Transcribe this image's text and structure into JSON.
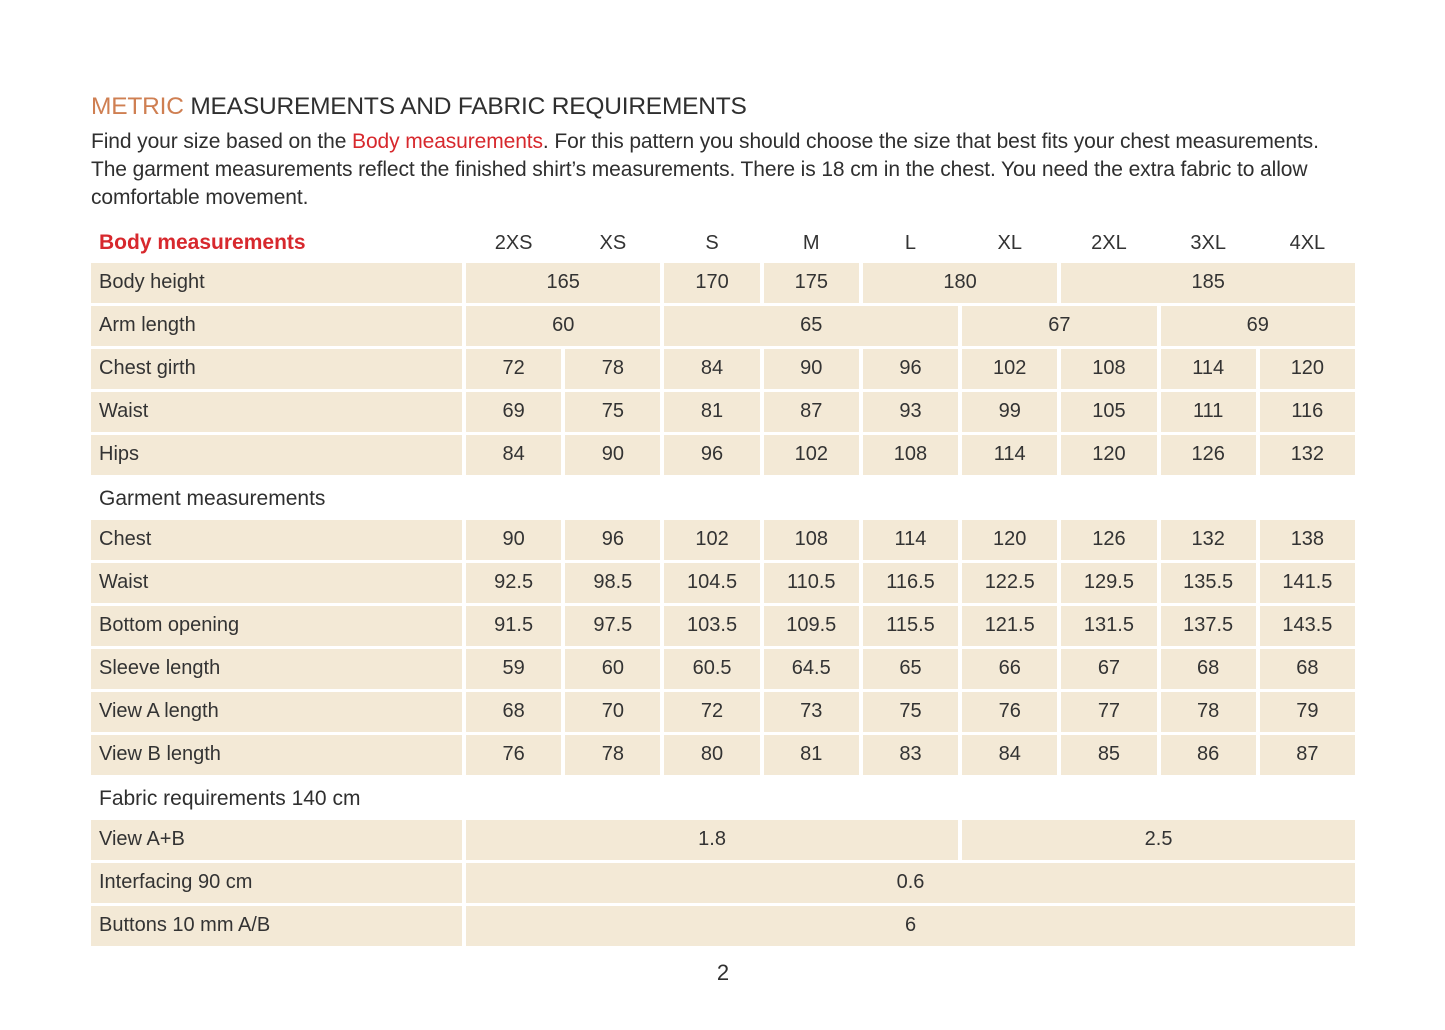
{
  "colors": {
    "accent_orange": "#cf7f52",
    "accent_red": "#d7282d",
    "cell_bg": "#f3e9d6"
  },
  "page": {
    "title_highlight": "METRIC",
    "title_rest": " MEASUREMENTS AND FABRIC REQUIREMENTS",
    "intro_before": "Find your size based on the ",
    "intro_link": "Body measurements",
    "intro_after": ". For this pattern you should choose the size that best fits your chest measurements. The garment measurements reflect the finished shirt’s measurements. There is 18 cm in the chest. You need the extra fabric to allow comfortable movement.",
    "page_number": "2"
  },
  "table": {
    "header": {
      "label": "Body measurements",
      "sizes": [
        "2XS",
        "XS",
        "S",
        "M",
        "L",
        "XL",
        "2XL",
        "3XL",
        "4XL"
      ]
    },
    "groups": [
      {
        "rows": [
          {
            "label": "Body height",
            "cells": [
              {
                "span": 2,
                "value": "165"
              },
              {
                "span": 1,
                "value": "170"
              },
              {
                "span": 1,
                "value": "175"
              },
              {
                "span": 2,
                "value": "180"
              },
              {
                "span": 3,
                "value": "185"
              }
            ]
          },
          {
            "label": "Arm length",
            "cells": [
              {
                "span": 2,
                "value": "60"
              },
              {
                "span": 3,
                "value": "65"
              },
              {
                "span": 2,
                "value": "67"
              },
              {
                "span": 2,
                "value": "69"
              }
            ]
          },
          {
            "label": "Chest girth",
            "values": [
              "72",
              "78",
              "84",
              "90",
              "96",
              "102",
              "108",
              "114",
              "120"
            ]
          },
          {
            "label": "Waist",
            "values": [
              "69",
              "75",
              "81",
              "87",
              "93",
              "99",
              "105",
              "111",
              "116"
            ]
          },
          {
            "label": "Hips",
            "values": [
              "84",
              "90",
              "96",
              "102",
              "108",
              "114",
              "120",
              "126",
              "132"
            ]
          }
        ]
      },
      {
        "section": "Garment measurements",
        "rows": [
          {
            "label": "Chest",
            "values": [
              "90",
              "96",
              "102",
              "108",
              "114",
              "120",
              "126",
              "132",
              "138"
            ]
          },
          {
            "label": "Waist",
            "values": [
              "92.5",
              "98.5",
              "104.5",
              "110.5",
              "116.5",
              "122.5",
              "129.5",
              "135.5",
              "141.5"
            ]
          },
          {
            "label": "Bottom opening",
            "values": [
              "91.5",
              "97.5",
              "103.5",
              "109.5",
              "115.5",
              "121.5",
              "131.5",
              "137.5",
              "143.5"
            ]
          },
          {
            "label": "Sleeve length",
            "values": [
              "59",
              "60",
              "60.5",
              "64.5",
              "65",
              "66",
              "67",
              "68",
              "68"
            ]
          },
          {
            "label": "View A length",
            "values": [
              "68",
              "70",
              "72",
              "73",
              "75",
              "76",
              "77",
              "78",
              "79"
            ]
          },
          {
            "label": "View B length",
            "values": [
              "76",
              "78",
              "80",
              "81",
              "83",
              "84",
              "85",
              "86",
              "87"
            ]
          }
        ]
      },
      {
        "section": "Fabric requirements 140 cm",
        "rows": [
          {
            "label": "View A+B",
            "cells": [
              {
                "span": 5,
                "value": "1.8"
              },
              {
                "span": 4,
                "value": "2.5"
              }
            ]
          },
          {
            "label": "Interfacing 90 cm",
            "cells": [
              {
                "span": 9,
                "value": "0.6"
              }
            ]
          },
          {
            "label": "Buttons 10 mm A/B",
            "cells": [
              {
                "span": 9,
                "value": "6"
              }
            ]
          }
        ]
      }
    ]
  }
}
